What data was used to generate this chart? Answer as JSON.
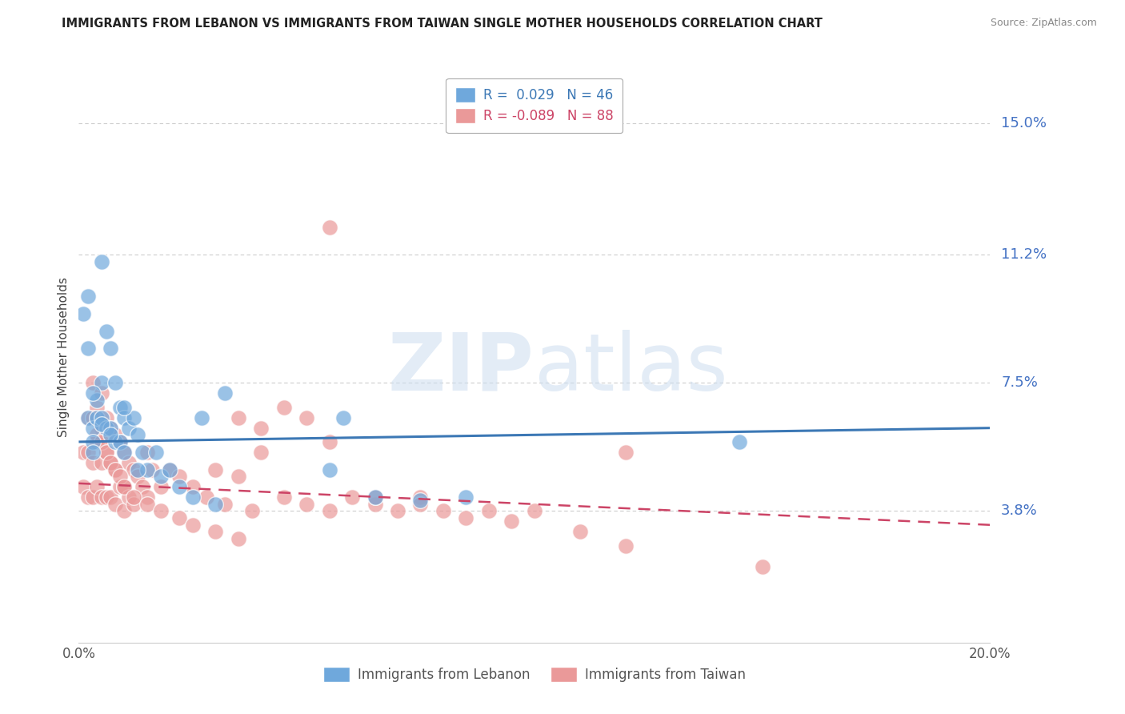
{
  "title": "IMMIGRANTS FROM LEBANON VS IMMIGRANTS FROM TAIWAN SINGLE MOTHER HOUSEHOLDS CORRELATION CHART",
  "source": "Source: ZipAtlas.com",
  "ylabel": "Single Mother Households",
  "xlim": [
    0.0,
    0.2
  ],
  "ylim": [
    0.0,
    0.165
  ],
  "yticks": [
    0.038,
    0.075,
    0.112,
    0.15
  ],
  "ytick_labels": [
    "3.8%",
    "7.5%",
    "11.2%",
    "15.0%"
  ],
  "xticks": [
    0.0,
    0.04,
    0.08,
    0.12,
    0.16,
    0.2
  ],
  "xtick_labels": [
    "0.0%",
    "",
    "",
    "",
    "",
    "20.0%"
  ],
  "legend_1_label": "R =  0.029   N = 46",
  "legend_2_label": "R = -0.089   N = 88",
  "legend_label_lebanon": "Immigrants from Lebanon",
  "legend_label_taiwan": "Immigrants from Taiwan",
  "color_lebanon": "#6fa8dc",
  "color_taiwan": "#ea9999",
  "color_line_lebanon": "#3c78b5",
  "color_line_taiwan": "#cc4466",
  "watermark_zip": "ZIP",
  "watermark_atlas": "atlas",
  "leb_trend_x0": 0.0,
  "leb_trend_y0": 0.058,
  "leb_trend_x1": 0.2,
  "leb_trend_y1": 0.062,
  "tai_trend_x0": 0.0,
  "tai_trend_y0": 0.046,
  "tai_trend_x1": 0.2,
  "tai_trend_y1": 0.034,
  "lebanon_x": [
    0.001,
    0.002,
    0.002,
    0.003,
    0.003,
    0.003,
    0.004,
    0.004,
    0.005,
    0.005,
    0.005,
    0.006,
    0.006,
    0.007,
    0.007,
    0.008,
    0.008,
    0.009,
    0.009,
    0.01,
    0.01,
    0.011,
    0.012,
    0.013,
    0.014,
    0.015,
    0.017,
    0.018,
    0.02,
    0.022,
    0.025,
    0.027,
    0.03,
    0.032,
    0.055,
    0.058,
    0.065,
    0.075,
    0.085,
    0.145,
    0.002,
    0.003,
    0.005,
    0.007,
    0.01,
    0.013
  ],
  "lebanon_y": [
    0.095,
    0.085,
    0.065,
    0.062,
    0.058,
    0.055,
    0.07,
    0.065,
    0.11,
    0.075,
    0.065,
    0.09,
    0.062,
    0.085,
    0.062,
    0.075,
    0.058,
    0.068,
    0.058,
    0.065,
    0.055,
    0.062,
    0.065,
    0.06,
    0.055,
    0.05,
    0.055,
    0.048,
    0.05,
    0.045,
    0.042,
    0.065,
    0.04,
    0.072,
    0.05,
    0.065,
    0.042,
    0.041,
    0.042,
    0.058,
    0.1,
    0.072,
    0.063,
    0.06,
    0.068,
    0.05
  ],
  "taiwan_x": [
    0.001,
    0.001,
    0.002,
    0.002,
    0.002,
    0.003,
    0.003,
    0.003,
    0.003,
    0.004,
    0.004,
    0.004,
    0.005,
    0.005,
    0.005,
    0.005,
    0.006,
    0.006,
    0.006,
    0.007,
    0.007,
    0.007,
    0.008,
    0.008,
    0.008,
    0.009,
    0.009,
    0.01,
    0.01,
    0.01,
    0.011,
    0.011,
    0.012,
    0.012,
    0.013,
    0.014,
    0.015,
    0.015,
    0.016,
    0.018,
    0.02,
    0.022,
    0.025,
    0.028,
    0.03,
    0.032,
    0.035,
    0.038,
    0.04,
    0.045,
    0.05,
    0.055,
    0.06,
    0.065,
    0.07,
    0.075,
    0.08,
    0.085,
    0.09,
    0.095,
    0.1,
    0.11,
    0.12,
    0.035,
    0.04,
    0.045,
    0.05,
    0.055,
    0.065,
    0.075,
    0.003,
    0.004,
    0.005,
    0.006,
    0.007,
    0.008,
    0.009,
    0.01,
    0.012,
    0.015,
    0.018,
    0.022,
    0.025,
    0.03,
    0.035,
    0.055,
    0.12,
    0.15
  ],
  "taiwan_y": [
    0.055,
    0.045,
    0.065,
    0.055,
    0.042,
    0.075,
    0.065,
    0.052,
    0.042,
    0.068,
    0.058,
    0.045,
    0.072,
    0.062,
    0.052,
    0.042,
    0.065,
    0.055,
    0.042,
    0.062,
    0.052,
    0.042,
    0.06,
    0.05,
    0.04,
    0.058,
    0.045,
    0.055,
    0.045,
    0.038,
    0.052,
    0.042,
    0.05,
    0.04,
    0.048,
    0.045,
    0.055,
    0.042,
    0.05,
    0.045,
    0.05,
    0.048,
    0.045,
    0.042,
    0.05,
    0.04,
    0.048,
    0.038,
    0.055,
    0.042,
    0.04,
    0.038,
    0.042,
    0.04,
    0.038,
    0.042,
    0.038,
    0.036,
    0.038,
    0.035,
    0.038,
    0.032,
    0.055,
    0.065,
    0.062,
    0.068,
    0.065,
    0.058,
    0.042,
    0.04,
    0.065,
    0.06,
    0.058,
    0.055,
    0.052,
    0.05,
    0.048,
    0.045,
    0.042,
    0.04,
    0.038,
    0.036,
    0.034,
    0.032,
    0.03,
    0.12,
    0.028,
    0.022
  ]
}
